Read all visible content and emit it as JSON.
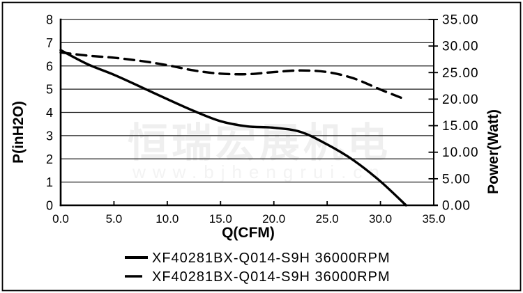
{
  "watermark": {
    "company_cn": "恒瑞宏展机电",
    "website": "www.bjhengrui.cn"
  },
  "chart_data": {
    "type": "line",
    "xlabel": "Q(CFM)",
    "ylabel_left": "P(inH2O)",
    "ylabel_right": "Power(Watt)",
    "xlim": [
      0,
      35
    ],
    "ylim_left": [
      0,
      8
    ],
    "ylim_right": [
      0,
      35
    ],
    "grid": "horizontal",
    "legend_position": "bottom",
    "x_ticks": [
      "0.0",
      "5.0",
      "10.0",
      "15.0",
      "20.0",
      "25.0",
      "30.0",
      "35.0"
    ],
    "y_ticks_left": [
      "8",
      "7",
      "6",
      "5",
      "4",
      "3",
      "2",
      "1",
      "0"
    ],
    "y_ticks_right": [
      "35.00",
      "30.00",
      "25.00",
      "20.00",
      "15.00",
      "10.00",
      "5.00",
      "0.00"
    ],
    "x": [
      0,
      2.5,
      5,
      7.5,
      10,
      12.5,
      15,
      17.5,
      20,
      22.5,
      25,
      27.5,
      30,
      32.4
    ],
    "series": [
      {
        "name": "pressure",
        "label": "XF40281BX-Q014-S9H 36000RPM",
        "line_style": "solid",
        "axis": "left",
        "values": [
          6.68,
          6.08,
          5.62,
          5.1,
          4.57,
          4.06,
          3.62,
          3.4,
          3.34,
          3.16,
          2.62,
          1.93,
          1.03,
          0
        ]
      },
      {
        "name": "power",
        "label": "XF40281BX-Q014-S9H 36000RPM",
        "line_style": "dashed",
        "axis": "right",
        "values": [
          28.8,
          28.2,
          27.8,
          27.2,
          26.4,
          25.4,
          24.8,
          24.7,
          25.1,
          25.4,
          25.1,
          23.9,
          21.8,
          19.9
        ]
      }
    ]
  }
}
